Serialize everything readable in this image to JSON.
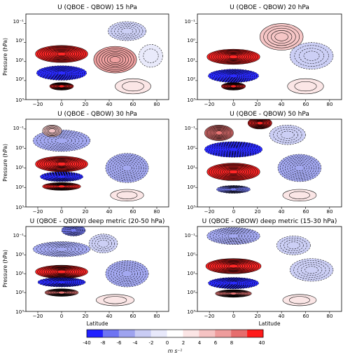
{
  "figure": {
    "colorbar_unit": "m s⁻¹",
    "colorbar_ticks": [
      "-40",
      "-8",
      "-6",
      "-4",
      "-2",
      "0",
      "2",
      "4",
      "6",
      "8",
      "40"
    ],
    "colorbar_colors": [
      "#2020ff",
      "#6e74f2",
      "#9ea3ef",
      "#c9ccf4",
      "#e8e9fb",
      "#ffffff",
      "#fbe5e5",
      "#f5c3c3",
      "#ee9c9c",
      "#e66d6d",
      "#ff1a1a"
    ]
  },
  "chart_data": [
    {
      "type": "contour",
      "title": "U (QBOE - QBOW) 15 hPa",
      "xlabel": "",
      "ylabel": "Pressure (hPa)",
      "x_ticks": [
        "−20",
        "0",
        "20",
        "40",
        "60",
        "80"
      ],
      "y_ticks": [
        "10⁻¹",
        "10⁰",
        "10¹",
        "10²",
        "10³"
      ],
      "xlim": [
        -30,
        90
      ],
      "ylim_log10_hpa": [
        -1.5,
        3
      ],
      "features": [
        {
          "sign": "pos",
          "lat": 0,
          "log10_p": 0.6,
          "lat_half": 22,
          "logp_half": 0.45,
          "value": 40
        },
        {
          "sign": "neg",
          "lat": 0,
          "log10_p": 1.6,
          "lat_half": 21,
          "logp_half": 0.38,
          "value": -40
        },
        {
          "sign": "pos",
          "lat": 0,
          "log10_p": 2.3,
          "lat_half": 10,
          "logp_half": 0.2,
          "value": 40
        },
        {
          "sign": "pos",
          "lat": 45,
          "log10_p": 0.9,
          "lat_half": 18,
          "logp_half": 0.7,
          "value": 4
        },
        {
          "sign": "neg",
          "lat": 55,
          "log10_p": -0.6,
          "lat_half": 16,
          "logp_half": 0.5,
          "value": -3
        },
        {
          "sign": "neg",
          "lat": 75,
          "log10_p": 0.7,
          "lat_half": 10,
          "logp_half": 0.6,
          "value": -1
        },
        {
          "sign": "pos",
          "lat": 60,
          "log10_p": 2.3,
          "lat_half": 15,
          "logp_half": 0.4,
          "value": 1
        }
      ]
    },
    {
      "type": "contour",
      "title": "U (QBOE - QBOW) 20 hPa",
      "xlabel": "",
      "ylabel": "",
      "x_ticks": [
        "−20",
        "0",
        "20",
        "40",
        "60",
        "80"
      ],
      "y_ticks": [
        "10⁻¹",
        "10⁰",
        "10¹",
        "10²",
        "10³"
      ],
      "xlim": [
        -30,
        90
      ],
      "ylim_log10_hpa": [
        -1.5,
        3
      ],
      "features": [
        {
          "sign": "pos",
          "lat": 0,
          "log10_p": 0.75,
          "lat_half": 22,
          "logp_half": 0.4,
          "value": 40
        },
        {
          "sign": "neg",
          "lat": 0,
          "log10_p": 1.75,
          "lat_half": 21,
          "logp_half": 0.35,
          "value": -40
        },
        {
          "sign": "pos",
          "lat": 0,
          "log10_p": 2.3,
          "lat_half": 10,
          "logp_half": 0.2,
          "value": 40
        },
        {
          "sign": "pos",
          "lat": 40,
          "log10_p": -0.3,
          "lat_half": 18,
          "logp_half": 0.7,
          "value": 3
        },
        {
          "sign": "neg",
          "lat": 65,
          "log10_p": 0.7,
          "lat_half": 18,
          "logp_half": 0.7,
          "value": -2
        },
        {
          "sign": "pos",
          "lat": 60,
          "log10_p": 2.3,
          "lat_half": 15,
          "logp_half": 0.4,
          "value": 1
        }
      ]
    },
    {
      "type": "contour",
      "title": "U (QBOE - QBOW) 30 hPa",
      "xlabel": "",
      "ylabel": "Pressure (hPa)",
      "x_ticks": [
        "−20",
        "0",
        "20",
        "40",
        "60",
        "80"
      ],
      "y_ticks": [
        "10⁻¹",
        "10⁰",
        "10¹",
        "10²",
        "10³"
      ],
      "xlim": [
        -30,
        90
      ],
      "ylim_log10_hpa": [
        -1.5,
        3
      ],
      "features": [
        {
          "sign": "neg",
          "lat": 0,
          "log10_p": -0.4,
          "lat_half": 24,
          "logp_half": 0.55,
          "value": -4
        },
        {
          "sign": "pos",
          "lat": -8,
          "log10_p": -0.9,
          "lat_half": 8,
          "logp_half": 0.3,
          "value": 3
        },
        {
          "sign": "pos",
          "lat": 0,
          "log10_p": 0.8,
          "lat_half": 22,
          "logp_half": 0.4,
          "value": 40
        },
        {
          "sign": "neg",
          "lat": 0,
          "log10_p": 1.45,
          "lat_half": 18,
          "logp_half": 0.25,
          "value": -40
        },
        {
          "sign": "pos",
          "lat": 0,
          "log10_p": 1.95,
          "lat_half": 16,
          "logp_half": 0.2,
          "value": 40
        },
        {
          "sign": "neg",
          "lat": 55,
          "log10_p": 1.0,
          "lat_half": 18,
          "logp_half": 0.75,
          "value": -5
        },
        {
          "sign": "pos",
          "lat": 55,
          "log10_p": 2.4,
          "lat_half": 14,
          "logp_half": 0.3,
          "value": 1
        }
      ]
    },
    {
      "type": "contour",
      "title": "U (QBOE - QBOW) 50 hPa",
      "xlabel": "",
      "ylabel": "",
      "x_ticks": [
        "−20",
        "0",
        "20",
        "40",
        "60",
        "80"
      ],
      "y_ticks": [
        "10⁻¹",
        "10⁰",
        "10¹",
        "10²",
        "10³"
      ],
      "xlim": [
        -30,
        90
      ],
      "ylim_log10_hpa": [
        -1.5,
        3
      ],
      "features": [
        {
          "sign": "pos",
          "lat": 22,
          "log10_p": -1.3,
          "lat_half": 10,
          "logp_half": 0.3,
          "value": 40
        },
        {
          "sign": "pos",
          "lat": -12,
          "log10_p": -0.8,
          "lat_half": 12,
          "logp_half": 0.4,
          "value": 6
        },
        {
          "sign": "neg",
          "lat": 0,
          "log10_p": 0.05,
          "lat_half": 24,
          "logp_half": 0.4,
          "value": -40
        },
        {
          "sign": "pos",
          "lat": 0,
          "log10_p": 1.2,
          "lat_half": 22,
          "logp_half": 0.45,
          "value": 40
        },
        {
          "sign": "neg",
          "lat": 0,
          "log10_p": 2.1,
          "lat_half": 14,
          "logp_half": 0.2,
          "value": -8
        },
        {
          "sign": "neg",
          "lat": 55,
          "log10_p": 1.0,
          "lat_half": 18,
          "logp_half": 0.7,
          "value": -5
        },
        {
          "sign": "neg",
          "lat": 45,
          "log10_p": -0.7,
          "lat_half": 15,
          "logp_half": 0.5,
          "value": -2
        },
        {
          "sign": "pos",
          "lat": 55,
          "log10_p": 2.4,
          "lat_half": 14,
          "logp_half": 0.3,
          "value": 1
        }
      ]
    },
    {
      "type": "contour",
      "title": "U (QBOE - QBOW) deep metric (20-50 hPa)",
      "xlabel": "Latitude",
      "ylabel": "Pressure (hPa)",
      "x_ticks": [
        "−20",
        "0",
        "20",
        "40",
        "60",
        "80"
      ],
      "y_ticks": [
        "10⁻¹",
        "10⁰",
        "10¹",
        "10²",
        "10³"
      ],
      "xlim": [
        -30,
        90
      ],
      "ylim_log10_hpa": [
        -1.5,
        3
      ],
      "features": [
        {
          "sign": "neg",
          "lat": 10,
          "log10_p": -1.3,
          "lat_half": 10,
          "logp_half": 0.3,
          "value": -6
        },
        {
          "sign": "neg",
          "lat": 0,
          "log10_p": -0.3,
          "lat_half": 24,
          "logp_half": 0.4,
          "value": -4
        },
        {
          "sign": "pos",
          "lat": 0,
          "log10_p": 0.9,
          "lat_half": 22,
          "logp_half": 0.35,
          "value": 40
        },
        {
          "sign": "neg",
          "lat": 0,
          "log10_p": 1.45,
          "lat_half": 20,
          "logp_half": 0.25,
          "value": -40
        },
        {
          "sign": "pos",
          "lat": 0,
          "log10_p": 2.0,
          "lat_half": 14,
          "logp_half": 0.2,
          "value": 8
        },
        {
          "sign": "neg",
          "lat": 55,
          "log10_p": 1.0,
          "lat_half": 18,
          "logp_half": 0.7,
          "value": -4
        },
        {
          "sign": "neg",
          "lat": 35,
          "log10_p": -0.6,
          "lat_half": 12,
          "logp_half": 0.5,
          "value": -2
        },
        {
          "sign": "pos",
          "lat": 45,
          "log10_p": 2.4,
          "lat_half": 16,
          "logp_half": 0.3,
          "value": 1
        }
      ]
    },
    {
      "type": "contour",
      "title": "U (QBOE - QBOW) deep metric (15-30 hPa)",
      "xlabel": "Latitude",
      "ylabel": "",
      "x_ticks": [
        "−20",
        "0",
        "20",
        "40",
        "60",
        "80"
      ],
      "y_ticks": [
        "10⁻¹",
        "10⁰",
        "10¹",
        "10²",
        "10³"
      ],
      "xlim": [
        -30,
        90
      ],
      "ylim_log10_hpa": [
        -1.5,
        3
      ],
      "features": [
        {
          "sign": "neg",
          "lat": 0,
          "log10_p": -1.0,
          "lat_half": 22,
          "logp_half": 0.45,
          "value": -5
        },
        {
          "sign": "pos",
          "lat": 0,
          "log10_p": 0.6,
          "lat_half": 23,
          "logp_half": 0.4,
          "value": 40
        },
        {
          "sign": "neg",
          "lat": 0,
          "log10_p": 1.5,
          "lat_half": 21,
          "logp_half": 0.3,
          "value": -40
        },
        {
          "sign": "pos",
          "lat": 0,
          "log10_p": 2.05,
          "lat_half": 15,
          "logp_half": 0.2,
          "value": 8
        },
        {
          "sign": "neg",
          "lat": 50,
          "log10_p": -0.5,
          "lat_half": 14,
          "logp_half": 0.5,
          "value": -2
        },
        {
          "sign": "neg",
          "lat": 65,
          "log10_p": 0.8,
          "lat_half": 18,
          "logp_half": 0.6,
          "value": -3
        },
        {
          "sign": "pos",
          "lat": 55,
          "log10_p": 2.4,
          "lat_half": 14,
          "logp_half": 0.3,
          "value": 1
        }
      ]
    }
  ]
}
